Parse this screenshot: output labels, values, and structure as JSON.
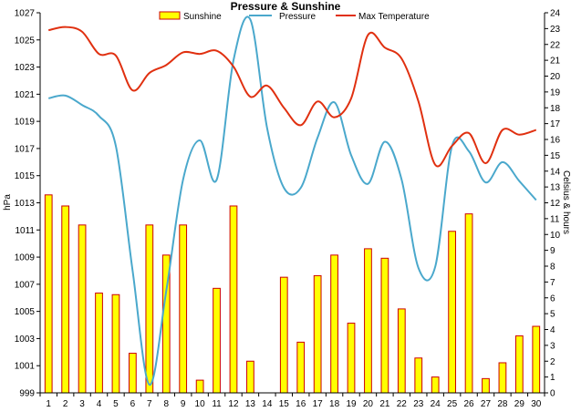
{
  "chart_data": {
    "type": "bar",
    "title": "Pressure & Sunshine",
    "x": [
      1,
      2,
      3,
      4,
      5,
      6,
      7,
      8,
      9,
      10,
      11,
      12,
      13,
      14,
      15,
      16,
      17,
      18,
      19,
      20,
      21,
      22,
      23,
      24,
      25,
      26,
      27,
      28,
      29,
      30
    ],
    "left_axis": {
      "label": "hPa",
      "min": 999,
      "max": 1027,
      "ticks": [
        999,
        1001,
        1003,
        1005,
        1007,
        1009,
        1011,
        1013,
        1015,
        1017,
        1019,
        1021,
        1023,
        1025,
        1027
      ]
    },
    "right_axis": {
      "label": "Celsius & hours",
      "min": 0,
      "max": 24,
      "ticks": [
        0,
        1,
        2,
        3,
        4,
        5,
        6,
        7,
        8,
        9,
        10,
        11,
        12,
        13,
        14,
        15,
        16,
        17,
        18,
        19,
        20,
        21,
        22,
        23,
        24
      ]
    },
    "series": [
      {
        "name": "Sunshine",
        "type": "bar",
        "axis": "right",
        "color": "#ffff00",
        "edge": "#cc0000",
        "values": [
          12.5,
          11.8,
          10.6,
          6.3,
          6.2,
          2.5,
          10.6,
          8.7,
          10.6,
          0.8,
          6.6,
          11.8,
          2.0,
          0,
          7.3,
          3.2,
          7.4,
          8.7,
          4.4,
          9.1,
          8.5,
          5.3,
          2.2,
          1.0,
          10.2,
          11.3,
          0.9,
          1.9,
          3.6,
          4.2
        ]
      },
      {
        "name": "Pressure",
        "type": "line",
        "axis": "left",
        "color": "#4aa8cc",
        "values": [
          1020.7,
          1020.9,
          1020.2,
          1019.4,
          1017.2,
          1008.0,
          999.6,
          1006.5,
          1014.7,
          1017.6,
          1014.7,
          1023.5,
          1026.5,
          1018.5,
          1014.1,
          1014.1,
          1017.8,
          1020.4,
          1016.5,
          1014.4,
          1017.5,
          1014.7,
          1008.2,
          1008.3,
          1017.2,
          1016.8,
          1014.5,
          1016.0,
          1014.6,
          1013.2
        ]
      },
      {
        "name": "Max Temperature",
        "type": "line",
        "axis": "right",
        "color": "#e03010",
        "values": [
          22.9,
          23.1,
          22.8,
          21.4,
          21.3,
          19.1,
          20.2,
          20.7,
          21.5,
          21.4,
          21.6,
          20.6,
          18.7,
          19.4,
          18.0,
          16.9,
          18.4,
          17.4,
          18.6,
          22.6,
          21.8,
          21.1,
          18.4,
          14.4,
          15.6,
          16.4,
          14.5,
          16.6,
          16.3,
          16.6
        ]
      }
    ],
    "legend": "top",
    "grid": false
  }
}
